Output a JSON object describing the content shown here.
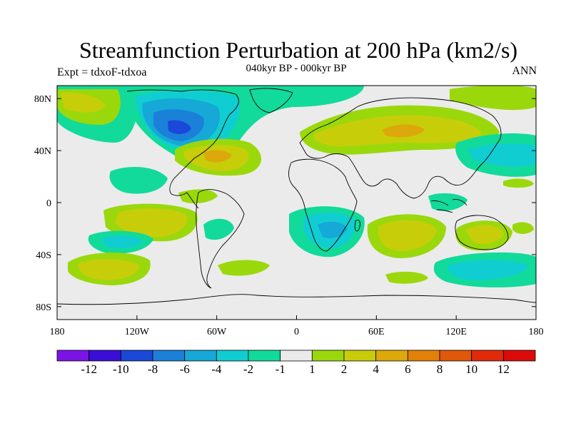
{
  "header": {
    "title": "Streamfunction Perturbation at 200 hPa (km2/s)",
    "subtitle": "040kyr BP - 000kyr BP",
    "left_label": "Expt = tdxoF-tdxoa",
    "right_label": "ANN"
  },
  "map": {
    "x_ticks": [
      "180",
      "120W",
      "60W",
      "0",
      "60E",
      "120E",
      "180"
    ],
    "y_ticks": [
      "80N",
      "40N",
      "0",
      "40S",
      "80S"
    ],
    "background_color": "#ebebeb"
  },
  "colorbar": {
    "labels": [
      "-12",
      "-10",
      "-8",
      "-6",
      "-4",
      "-2",
      "-1",
      "1",
      "2",
      "4",
      "6",
      "8",
      "10",
      "12"
    ],
    "colors": [
      "#7a14e6",
      "#3a0ed6",
      "#1b48d8",
      "#1a80d8",
      "#16a8d6",
      "#10cdd2",
      "#12da9a",
      "#ebebeb",
      "#9ad80c",
      "#c8cd0a",
      "#dca80a",
      "#e28008",
      "#e05808",
      "#e02a0a",
      "#dc0a0a"
    ]
  }
}
